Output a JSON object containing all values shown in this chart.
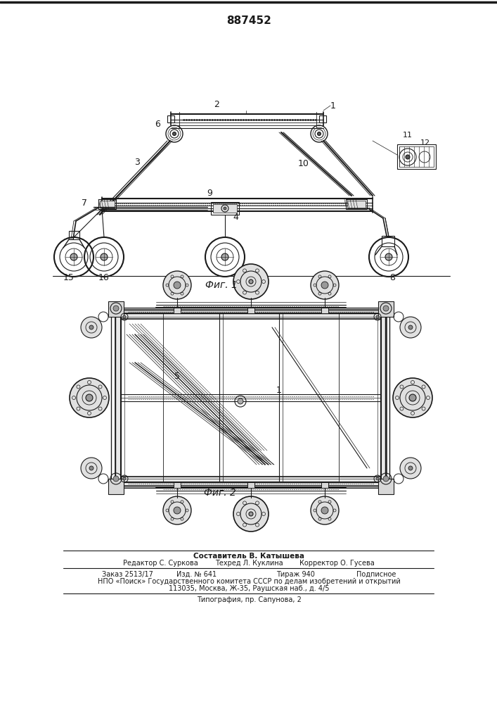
{
  "patent_number": "887452",
  "fig1_label": "Фиг. 1",
  "fig2_label": "Фиг. 2",
  "composer_line": "Составитель В. Катышева",
  "editor_label": "Редактор С. Суркова",
  "techred_label": "Техред Л. Куклина",
  "corrector_label": "Корректор О. Гусева",
  "order_label": "Заказ 2513/17",
  "izd_label": "Изд. № 641",
  "tirazh_label": "Тираж 940",
  "podpisnoe_label": "Подписное",
  "npo_line": "НПО «Поиск» Государственного комитета СССР по делам изобретений и открытий",
  "address_line": "113035, Москва, Ж-35, Раушская наб., д. 4/5",
  "typography_line": "Типография, пр. Сапунова, 2",
  "bg_color": "#ffffff",
  "line_color": "#1a1a1a"
}
